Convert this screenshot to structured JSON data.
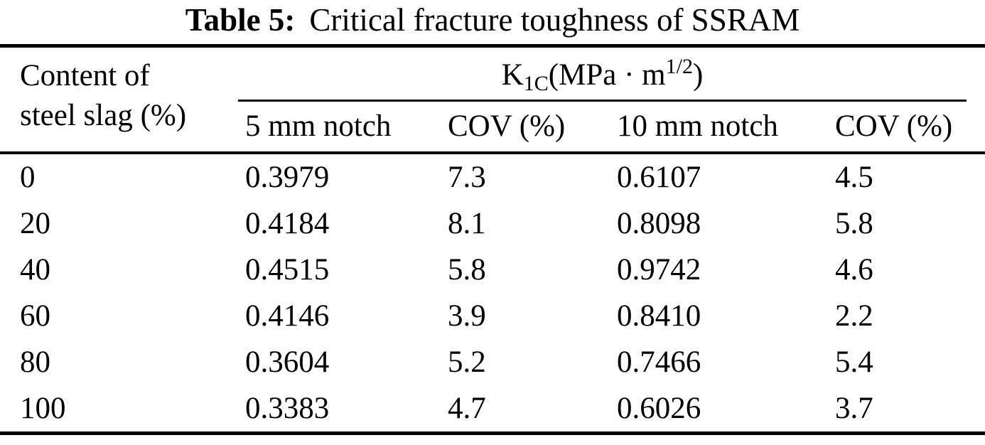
{
  "colors": {
    "ink": "#000000",
    "background": "#ffffff"
  },
  "caption": {
    "label": "Table 5:",
    "text": "Critical fracture toughness of SSRAM"
  },
  "table": {
    "row_header": {
      "line1": "Content of",
      "line2": "steel slag (%)"
    },
    "group_header": {
      "base": "K",
      "sub": "1C",
      "mid": "(MPa · m",
      "sup": "1/2",
      "end": ")"
    },
    "subheaders": [
      "5 mm notch",
      "COV (%)",
      "10 mm notch",
      "COV (%)"
    ],
    "rows": [
      [
        "0",
        "0.3979",
        "7.3",
        "0.6107",
        "4.5"
      ],
      [
        "20",
        "0.4184",
        "8.1",
        "0.8098",
        "5.8"
      ],
      [
        "40",
        "0.4515",
        "5.8",
        "0.9742",
        "4.6"
      ],
      [
        "60",
        "0.4146",
        "3.9",
        "0.8410",
        "2.2"
      ],
      [
        "80",
        "0.3604",
        "5.2",
        "0.7466",
        "5.4"
      ],
      [
        "100",
        "0.3383",
        "4.7",
        "0.6026",
        "3.7"
      ]
    ]
  },
  "chart_data": {
    "type": "table",
    "title": "Table 5: Critical fracture toughness of SSRAM",
    "group_column_label": "K1C (MPa·m^1/2)",
    "columns": [
      "Content of steel slag (%)",
      "5 mm notch",
      "COV (%)",
      "10 mm notch",
      "COV (%)"
    ],
    "rows": [
      [
        0,
        0.3979,
        7.3,
        0.6107,
        4.5
      ],
      [
        20,
        0.4184,
        8.1,
        0.8098,
        5.8
      ],
      [
        40,
        0.4515,
        5.8,
        0.9742,
        4.6
      ],
      [
        60,
        0.4146,
        3.9,
        0.841,
        2.2
      ],
      [
        80,
        0.3604,
        5.2,
        0.7466,
        5.4
      ],
      [
        100,
        0.3383,
        4.7,
        0.6026,
        3.7
      ]
    ]
  }
}
